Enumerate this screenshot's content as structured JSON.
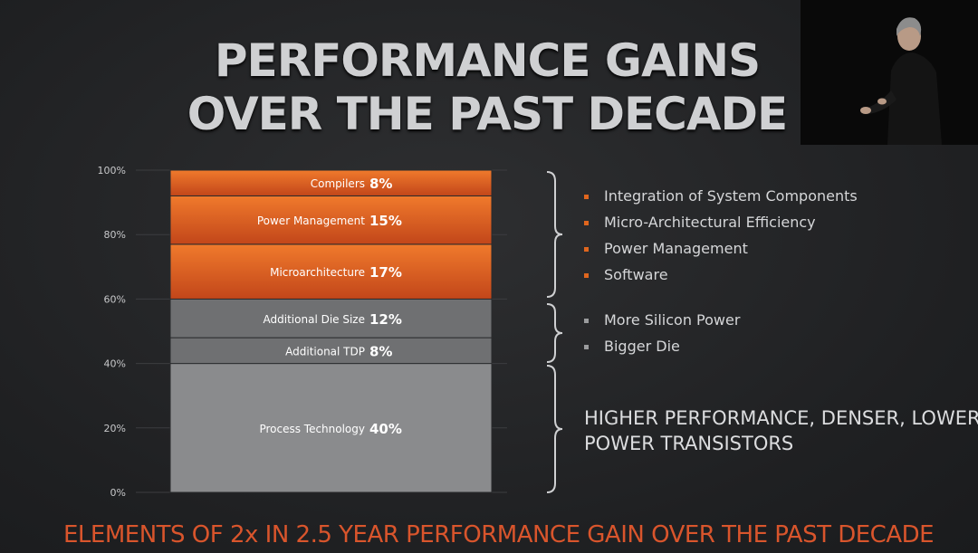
{
  "title_line1": "PERFORMANCE GAINS",
  "title_line2": "OVER THE PAST DECADE",
  "chart_data": {
    "type": "bar",
    "stacked": true,
    "ylim": [
      0,
      100
    ],
    "yticks": [
      "0%",
      "20%",
      "40%",
      "60%",
      "80%",
      "100%"
    ],
    "segments": [
      {
        "name": "Process Technology",
        "value": 40,
        "label": "40%",
        "color": "#8a8b8d"
      },
      {
        "name": "Additional TDP",
        "value": 8,
        "label": "8%",
        "color": "#6f7072"
      },
      {
        "name": "Additional Die Size",
        "value": 12,
        "label": "12%",
        "color": "#6f7072"
      },
      {
        "name": "Microarchitecture",
        "value": 17,
        "label": "17%",
        "color": "#d4501a"
      },
      {
        "name": "Power Management",
        "value": 15,
        "label": "15%",
        "color": "#d4501a"
      },
      {
        "name": "Compilers",
        "value": 8,
        "label": "8%",
        "color": "#d4501a"
      }
    ]
  },
  "bullets_orange": [
    "Integration of System Components",
    "Micro-Architectural Efficiency",
    "Power Management",
    "Software"
  ],
  "bullets_gray": [
    "More Silicon Power",
    "Bigger Die"
  ],
  "big_text_line1": "HIGHER PERFORMANCE, DENSER, LOWER",
  "big_text_line2": "POWER TRANSISTORS",
  "footer": "ELEMENTS OF 2x IN 2.5 YEAR PERFORMANCE GAIN OVER THE PAST DECADE",
  "colors": {
    "accent": "#d4501a",
    "bullet_orange": "#e0661e",
    "bullet_gray": "#9a9b9d"
  }
}
